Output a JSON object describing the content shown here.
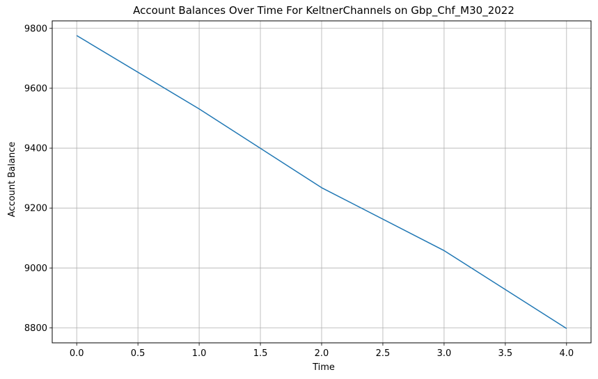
{
  "chart_data": {
    "type": "line",
    "title": "Account Balances Over Time For KeltnerChannels on Gbp_Chf_M30_2022",
    "xlabel": "Time",
    "ylabel": "Account Balance",
    "x": [
      0,
      1,
      2,
      3,
      4
    ],
    "series": [
      {
        "values": [
          9776,
          9531,
          9268,
          9058,
          8798
        ],
        "color": "#1f77b4"
      }
    ],
    "xlim": [
      -0.2,
      4.2
    ],
    "ylim": [
      8750,
      9825
    ],
    "xticks": [
      0.0,
      0.5,
      1.0,
      1.5,
      2.0,
      2.5,
      3.0,
      3.5,
      4.0
    ],
    "xtick_labels": [
      "0.0",
      "0.5",
      "1.0",
      "1.5",
      "2.0",
      "2.5",
      "3.0",
      "3.5",
      "4.0"
    ],
    "yticks": [
      8800,
      9000,
      9200,
      9400,
      9600,
      9800
    ],
    "ytick_labels": [
      "8800",
      "9000",
      "9200",
      "9400",
      "9600",
      "9800"
    ],
    "grid": true,
    "grid_color": "#b0b0b0",
    "axes_color": "#000000"
  }
}
